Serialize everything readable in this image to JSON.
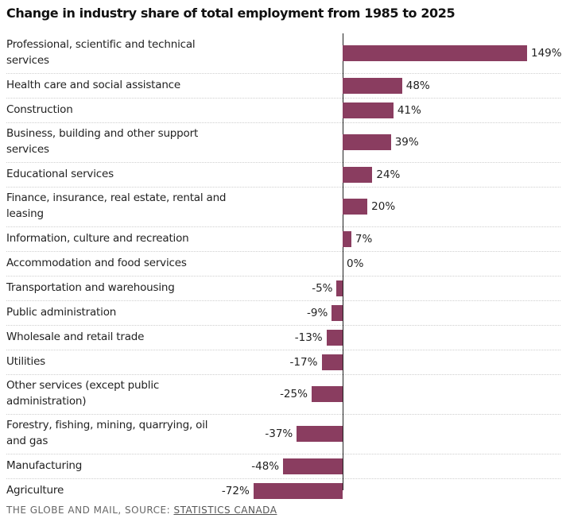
{
  "chart_data": {
    "type": "bar",
    "orientation": "horizontal",
    "title": "Change in industry share of total employment from 1985 to 2025",
    "xlabel": "",
    "ylabel": "",
    "value_suffix": "%",
    "xlim": [
      -72,
      149
    ],
    "grid": false,
    "bar_color": "#8a3d60",
    "categories": [
      "Professional, scientific and technical services",
      "Health care and social assistance",
      "Construction",
      "Business, building and other support services",
      "Educational services",
      "Finance, insurance, real estate, rental and leasing",
      "Information, culture and recreation",
      "Accommodation and food services",
      "Transportation and warehousing",
      "Public administration",
      "Wholesale and retail trade",
      "Utilities",
      "Other services (except public administration)",
      "Forestry, fishing, mining, quarrying, oil and gas",
      "Manufacturing",
      "Agriculture"
    ],
    "label_lines": [
      [
        "Professional, scientific and technical",
        "services"
      ],
      [
        "Health care and social assistance"
      ],
      [
        "Construction"
      ],
      [
        "Business, building and other support",
        "services"
      ],
      [
        "Educational services"
      ],
      [
        "Finance, insurance, real estate, rental and",
        "leasing"
      ],
      [
        "Information, culture and recreation"
      ],
      [
        "Accommodation and food services"
      ],
      [
        "Transportation and warehousing"
      ],
      [
        "Public administration"
      ],
      [
        "Wholesale and retail trade"
      ],
      [
        "Utilities"
      ],
      [
        "Other services (except public",
        "administration)"
      ],
      [
        "Forestry, fishing, mining, quarrying, oil",
        "and gas"
      ],
      [
        "Manufacturing"
      ],
      [
        "Agriculture"
      ]
    ],
    "values": [
      149,
      48,
      41,
      39,
      24,
      20,
      7,
      0,
      -5,
      -9,
      -13,
      -17,
      -25,
      -37,
      -48,
      -72
    ]
  },
  "footer": {
    "credit": "THE GLOBE AND MAIL, SOURCE: ",
    "source_link": "STATISTICS CANADA"
  }
}
